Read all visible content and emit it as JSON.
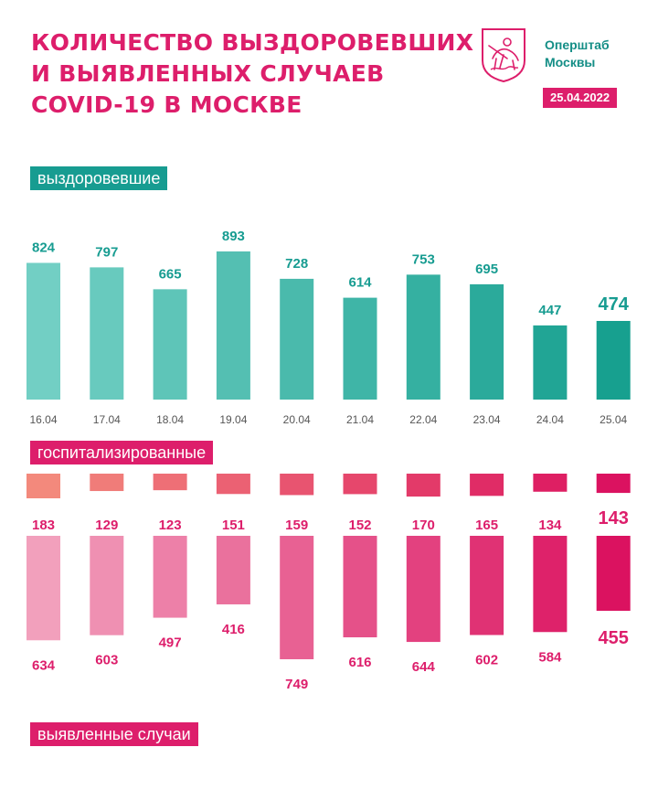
{
  "header": {
    "title_lines": [
      "КОЛИЧЕСТВО ВЫЗДОРОВЕВШИХ",
      "И ВЫЯВЛЕННЫХ СЛУЧАЕВ",
      "COVID-19 В МОСКВЕ"
    ],
    "brand_lines": [
      "Оперштаб",
      "Москвы"
    ],
    "date": "25.04.2022"
  },
  "labels": {
    "recovered": "выздоровевшие",
    "hospitalized": "госпитализированные",
    "cases": "выявленные случаи"
  },
  "colors": {
    "accent_pink": "#dd1e6b",
    "accent_teal": "#179c91",
    "teal_light": "#72cfc4",
    "teal_dark": "#17a08f",
    "pink_light_hosp": "#f3897c",
    "pink_light_cases": "#f2a0bc",
    "pink_dark": "#db1260",
    "axis_text": "#555555"
  },
  "chart_data": [
    {
      "type": "bar",
      "name": "выздоровевшие",
      "categories": [
        "16.04",
        "17.04",
        "18.04",
        "19.04",
        "20.04",
        "21.04",
        "22.04",
        "23.04",
        "24.04",
        "25.04"
      ],
      "values": [
        824,
        797,
        665,
        893,
        728,
        614,
        753,
        695,
        447,
        474
      ],
      "ylim": [
        0,
        1000
      ]
    },
    {
      "type": "bar",
      "name": "госпитализированные",
      "categories": [
        "16.04",
        "17.04",
        "18.04",
        "19.04",
        "20.04",
        "21.04",
        "22.04",
        "23.04",
        "24.04",
        "25.04"
      ],
      "values": [
        183,
        129,
        123,
        151,
        159,
        152,
        170,
        165,
        134,
        143
      ],
      "ylim": [
        0,
        200
      ]
    },
    {
      "type": "bar",
      "name": "выявленные случаи",
      "categories": [
        "16.04",
        "17.04",
        "18.04",
        "19.04",
        "20.04",
        "21.04",
        "22.04",
        "23.04",
        "24.04",
        "25.04"
      ],
      "values": [
        634,
        603,
        497,
        416,
        749,
        616,
        644,
        602,
        584,
        455
      ],
      "ylim": [
        0,
        800
      ]
    }
  ]
}
